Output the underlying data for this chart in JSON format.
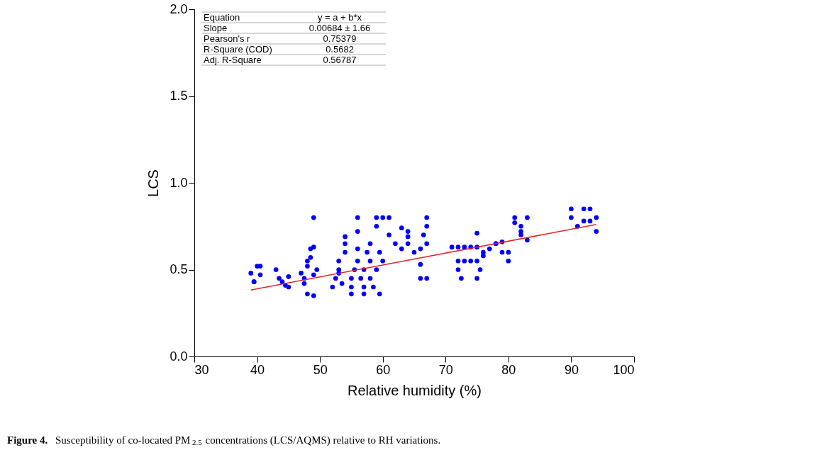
{
  "chart_data": {
    "type": "scatter",
    "xlabel": "Relative humidity (%)",
    "ylabel": "LCS",
    "xlim": [
      30,
      100
    ],
    "xticks": [
      30,
      40,
      50,
      60,
      70,
      80,
      90,
      100
    ],
    "ylim": [
      0,
      2.0
    ],
    "yticks": [
      {
        "value": 0,
        "label": "0.0"
      },
      {
        "value": 0.5,
        "label": "0.5"
      },
      {
        "value": 1.0,
        "label": "1.0"
      },
      {
        "value": 1.5,
        "label": "1.5"
      },
      {
        "value": 2.0,
        "label": "2.0"
      }
    ],
    "grid": false,
    "series": [
      {
        "color": "#0000ff",
        "marker": "circle",
        "x": [
          39,
          39.5,
          40,
          40.5,
          40.5,
          39.5,
          43,
          43.5,
          44,
          44.5,
          45,
          45,
          47,
          47.5,
          48,
          48,
          48.5,
          48.5,
          49,
          49,
          48,
          49,
          47.5,
          49,
          49.5,
          52,
          52.5,
          53,
          53,
          53,
          54,
          54,
          54,
          53.5,
          55,
          55,
          55.5,
          56,
          56,
          56,
          56,
          56.5,
          57,
          57,
          57.5,
          58,
          58,
          58,
          58.5,
          59,
          59,
          59,
          59.5,
          60,
          60,
          55,
          57,
          59.5,
          61,
          61,
          62,
          63,
          63,
          64,
          64,
          64,
          65,
          66,
          66,
          66,
          66.5,
          67,
          67,
          67,
          67,
          71,
          72,
          73,
          74,
          75,
          72,
          73,
          74,
          75,
          76,
          72,
          72.5,
          75,
          75,
          75.5,
          76,
          77,
          78,
          79,
          78,
          79,
          80,
          80,
          81,
          81,
          82,
          82,
          82,
          83,
          83,
          90,
          90,
          91,
          92,
          93,
          94,
          93,
          94,
          92
        ],
        "values": [
          0.48,
          0.43,
          0.52,
          0.47,
          0.52,
          0.43,
          0.5,
          0.45,
          0.43,
          0.41,
          0.4,
          0.46,
          0.48,
          0.45,
          0.52,
          0.55,
          0.57,
          0.62,
          0.63,
          0.8,
          0.36,
          0.35,
          0.42,
          0.47,
          0.5,
          0.4,
          0.45,
          0.48,
          0.55,
          0.5,
          0.6,
          0.65,
          0.69,
          0.42,
          0.45,
          0.4,
          0.5,
          0.8,
          0.72,
          0.62,
          0.55,
          0.45,
          0.4,
          0.5,
          0.6,
          0.45,
          0.55,
          0.65,
          0.4,
          0.75,
          0.5,
          0.8,
          0.6,
          0.8,
          0.55,
          0.36,
          0.36,
          0.36,
          0.7,
          0.8,
          0.65,
          0.74,
          0.62,
          0.72,
          0.69,
          0.65,
          0.6,
          0.45,
          0.53,
          0.62,
          0.7,
          0.75,
          0.8,
          0.45,
          0.65,
          0.63,
          0.63,
          0.63,
          0.63,
          0.63,
          0.55,
          0.55,
          0.55,
          0.55,
          0.58,
          0.5,
          0.45,
          0.71,
          0.45,
          0.5,
          0.6,
          0.62,
          0.65,
          0.6,
          0.65,
          0.66,
          0.55,
          0.6,
          0.8,
          0.77,
          0.72,
          0.7,
          0.75,
          0.67,
          0.8,
          0.85,
          0.8,
          0.75,
          0.85,
          0.85,
          0.72,
          0.78,
          0.8,
          0.78
        ]
      },
      {
        "color": "#e8212b",
        "type": "line",
        "x": [
          39,
          94
        ],
        "values": [
          0.383,
          0.76
        ]
      }
    ],
    "annotations": [
      "Equation",
      "y = a + b*x",
      "Slope",
      "0.00684 ± 1.66",
      "Pearson's r",
      "0.75379",
      "R-Square (COD)",
      "0.5682",
      "Adj. R-Square",
      "0.56787",
      "Figure 4. Susceptibility of co-located PM$_{2.5}$ concentrations (LCS/AQMS) relative to RH variations."
    ]
  }
}
